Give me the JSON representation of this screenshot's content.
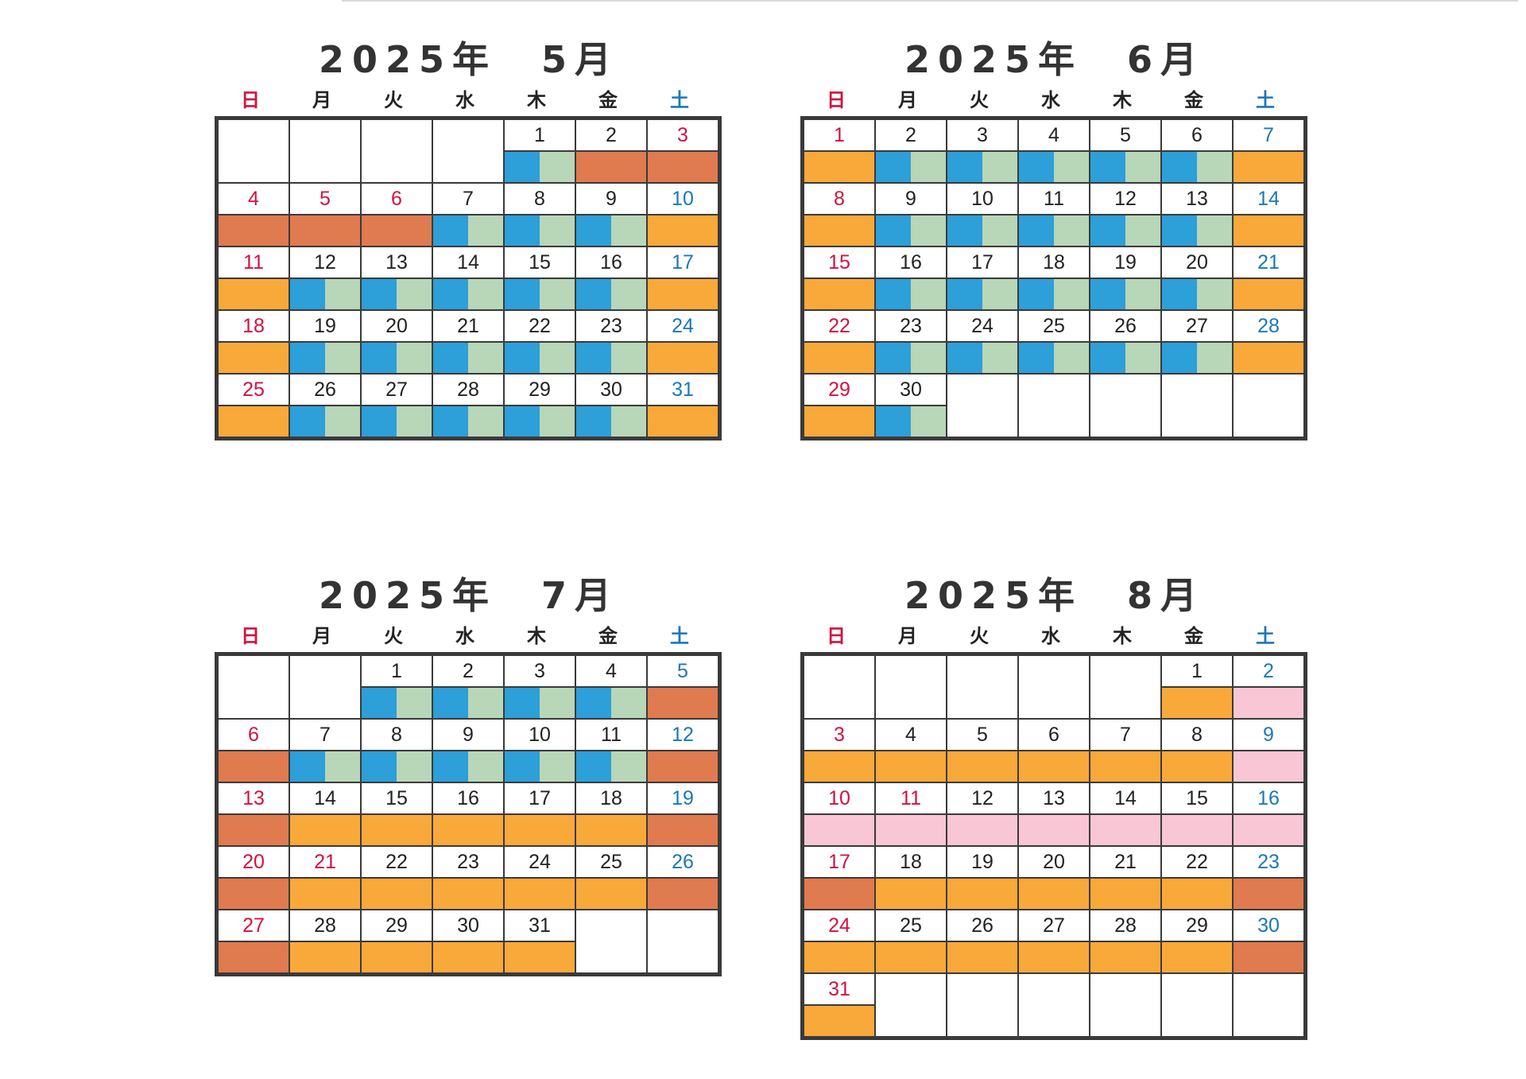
{
  "weekdays": [
    "日",
    "月",
    "火",
    "水",
    "木",
    "金",
    "土"
  ],
  "colors": {
    "blue-green": [
      "#2d9fd9",
      "#b8d6b8"
    ],
    "orange": "#f9a93a",
    "rust": "#e07a4f",
    "pink": "#f8c6d5"
  },
  "calendars": [
    {
      "title": "2025年　5月",
      "rows": [
        [
          {
            "d": "",
            "c": ""
          },
          {
            "d": "",
            "c": ""
          },
          {
            "d": "",
            "c": ""
          },
          {
            "d": "",
            "c": ""
          },
          {
            "d": "1",
            "c": "blue-green"
          },
          {
            "d": "2",
            "c": "rust"
          },
          {
            "d": "3",
            "c": "rust",
            "h": "hol"
          }
        ],
        [
          {
            "d": "4",
            "c": "rust",
            "h": "hol"
          },
          {
            "d": "5",
            "c": "rust",
            "h": "hol"
          },
          {
            "d": "6",
            "c": "rust",
            "h": "hol"
          },
          {
            "d": "7",
            "c": "blue-green"
          },
          {
            "d": "8",
            "c": "blue-green"
          },
          {
            "d": "9",
            "c": "blue-green"
          },
          {
            "d": "10",
            "c": "orange"
          }
        ],
        [
          {
            "d": "11",
            "c": "orange"
          },
          {
            "d": "12",
            "c": "blue-green"
          },
          {
            "d": "13",
            "c": "blue-green"
          },
          {
            "d": "14",
            "c": "blue-green"
          },
          {
            "d": "15",
            "c": "blue-green"
          },
          {
            "d": "16",
            "c": "blue-green"
          },
          {
            "d": "17",
            "c": "orange"
          }
        ],
        [
          {
            "d": "18",
            "c": "orange"
          },
          {
            "d": "19",
            "c": "blue-green"
          },
          {
            "d": "20",
            "c": "blue-green"
          },
          {
            "d": "21",
            "c": "blue-green"
          },
          {
            "d": "22",
            "c": "blue-green"
          },
          {
            "d": "23",
            "c": "blue-green"
          },
          {
            "d": "24",
            "c": "orange"
          }
        ],
        [
          {
            "d": "25",
            "c": "orange"
          },
          {
            "d": "26",
            "c": "blue-green"
          },
          {
            "d": "27",
            "c": "blue-green"
          },
          {
            "d": "28",
            "c": "blue-green"
          },
          {
            "d": "29",
            "c": "blue-green"
          },
          {
            "d": "30",
            "c": "blue-green"
          },
          {
            "d": "31",
            "c": "orange"
          }
        ]
      ]
    },
    {
      "title": "2025年　6月",
      "rows": [
        [
          {
            "d": "1",
            "c": "orange"
          },
          {
            "d": "2",
            "c": "blue-green"
          },
          {
            "d": "3",
            "c": "blue-green"
          },
          {
            "d": "4",
            "c": "blue-green"
          },
          {
            "d": "5",
            "c": "blue-green"
          },
          {
            "d": "6",
            "c": "blue-green"
          },
          {
            "d": "7",
            "c": "orange"
          }
        ],
        [
          {
            "d": "8",
            "c": "orange"
          },
          {
            "d": "9",
            "c": "blue-green"
          },
          {
            "d": "10",
            "c": "blue-green"
          },
          {
            "d": "11",
            "c": "blue-green"
          },
          {
            "d": "12",
            "c": "blue-green"
          },
          {
            "d": "13",
            "c": "blue-green"
          },
          {
            "d": "14",
            "c": "orange"
          }
        ],
        [
          {
            "d": "15",
            "c": "orange"
          },
          {
            "d": "16",
            "c": "blue-green"
          },
          {
            "d": "17",
            "c": "blue-green"
          },
          {
            "d": "18",
            "c": "blue-green"
          },
          {
            "d": "19",
            "c": "blue-green"
          },
          {
            "d": "20",
            "c": "blue-green"
          },
          {
            "d": "21",
            "c": "orange"
          }
        ],
        [
          {
            "d": "22",
            "c": "orange"
          },
          {
            "d": "23",
            "c": "blue-green"
          },
          {
            "d": "24",
            "c": "blue-green"
          },
          {
            "d": "25",
            "c": "blue-green"
          },
          {
            "d": "26",
            "c": "blue-green"
          },
          {
            "d": "27",
            "c": "blue-green"
          },
          {
            "d": "28",
            "c": "orange"
          }
        ],
        [
          {
            "d": "29",
            "c": "orange"
          },
          {
            "d": "30",
            "c": "blue-green"
          },
          {
            "d": "",
            "c": ""
          },
          {
            "d": "",
            "c": ""
          },
          {
            "d": "",
            "c": ""
          },
          {
            "d": "",
            "c": ""
          },
          {
            "d": "",
            "c": ""
          }
        ]
      ]
    },
    {
      "title": "2025年　7月",
      "rows": [
        [
          {
            "d": "",
            "c": ""
          },
          {
            "d": "",
            "c": ""
          },
          {
            "d": "1",
            "c": "blue-green"
          },
          {
            "d": "2",
            "c": "blue-green"
          },
          {
            "d": "3",
            "c": "blue-green"
          },
          {
            "d": "4",
            "c": "blue-green"
          },
          {
            "d": "5",
            "c": "rust"
          }
        ],
        [
          {
            "d": "6",
            "c": "rust"
          },
          {
            "d": "7",
            "c": "blue-green"
          },
          {
            "d": "8",
            "c": "blue-green"
          },
          {
            "d": "9",
            "c": "blue-green"
          },
          {
            "d": "10",
            "c": "blue-green"
          },
          {
            "d": "11",
            "c": "blue-green"
          },
          {
            "d": "12",
            "c": "rust"
          }
        ],
        [
          {
            "d": "13",
            "c": "rust"
          },
          {
            "d": "14",
            "c": "orange"
          },
          {
            "d": "15",
            "c": "orange"
          },
          {
            "d": "16",
            "c": "orange"
          },
          {
            "d": "17",
            "c": "orange"
          },
          {
            "d": "18",
            "c": "orange"
          },
          {
            "d": "19",
            "c": "rust"
          }
        ],
        [
          {
            "d": "20",
            "c": "rust"
          },
          {
            "d": "21",
            "c": "orange",
            "h": "hol"
          },
          {
            "d": "22",
            "c": "orange"
          },
          {
            "d": "23",
            "c": "orange"
          },
          {
            "d": "24",
            "c": "orange"
          },
          {
            "d": "25",
            "c": "orange"
          },
          {
            "d": "26",
            "c": "rust"
          }
        ],
        [
          {
            "d": "27",
            "c": "rust"
          },
          {
            "d": "28",
            "c": "orange"
          },
          {
            "d": "29",
            "c": "orange"
          },
          {
            "d": "30",
            "c": "orange"
          },
          {
            "d": "31",
            "c": "orange"
          },
          {
            "d": "",
            "c": ""
          },
          {
            "d": "",
            "c": ""
          }
        ]
      ]
    },
    {
      "title": "2025年　8月",
      "rows": [
        [
          {
            "d": "",
            "c": ""
          },
          {
            "d": "",
            "c": ""
          },
          {
            "d": "",
            "c": ""
          },
          {
            "d": "",
            "c": ""
          },
          {
            "d": "",
            "c": ""
          },
          {
            "d": "1",
            "c": "orange"
          },
          {
            "d": "2",
            "c": "pink"
          }
        ],
        [
          {
            "d": "3",
            "c": "orange"
          },
          {
            "d": "4",
            "c": "orange"
          },
          {
            "d": "5",
            "c": "orange"
          },
          {
            "d": "6",
            "c": "orange"
          },
          {
            "d": "7",
            "c": "orange"
          },
          {
            "d": "8",
            "c": "orange"
          },
          {
            "d": "9",
            "c": "pink"
          }
        ],
        [
          {
            "d": "10",
            "c": "pink"
          },
          {
            "d": "11",
            "c": "pink",
            "h": "hol"
          },
          {
            "d": "12",
            "c": "pink"
          },
          {
            "d": "13",
            "c": "pink"
          },
          {
            "d": "14",
            "c": "pink"
          },
          {
            "d": "15",
            "c": "pink"
          },
          {
            "d": "16",
            "c": "pink"
          }
        ],
        [
          {
            "d": "17",
            "c": "rust"
          },
          {
            "d": "18",
            "c": "orange"
          },
          {
            "d": "19",
            "c": "orange"
          },
          {
            "d": "20",
            "c": "orange"
          },
          {
            "d": "21",
            "c": "orange"
          },
          {
            "d": "22",
            "c": "orange"
          },
          {
            "d": "23",
            "c": "rust"
          }
        ],
        [
          {
            "d": "24",
            "c": "orange"
          },
          {
            "d": "25",
            "c": "orange"
          },
          {
            "d": "26",
            "c": "orange"
          },
          {
            "d": "27",
            "c": "orange"
          },
          {
            "d": "28",
            "c": "orange"
          },
          {
            "d": "29",
            "c": "orange"
          },
          {
            "d": "30",
            "c": "rust"
          }
        ],
        [
          {
            "d": "31",
            "c": "orange"
          },
          {
            "d": "",
            "c": ""
          },
          {
            "d": "",
            "c": ""
          },
          {
            "d": "",
            "c": ""
          },
          {
            "d": "",
            "c": ""
          },
          {
            "d": "",
            "c": ""
          },
          {
            "d": "",
            "c": ""
          }
        ]
      ]
    }
  ]
}
